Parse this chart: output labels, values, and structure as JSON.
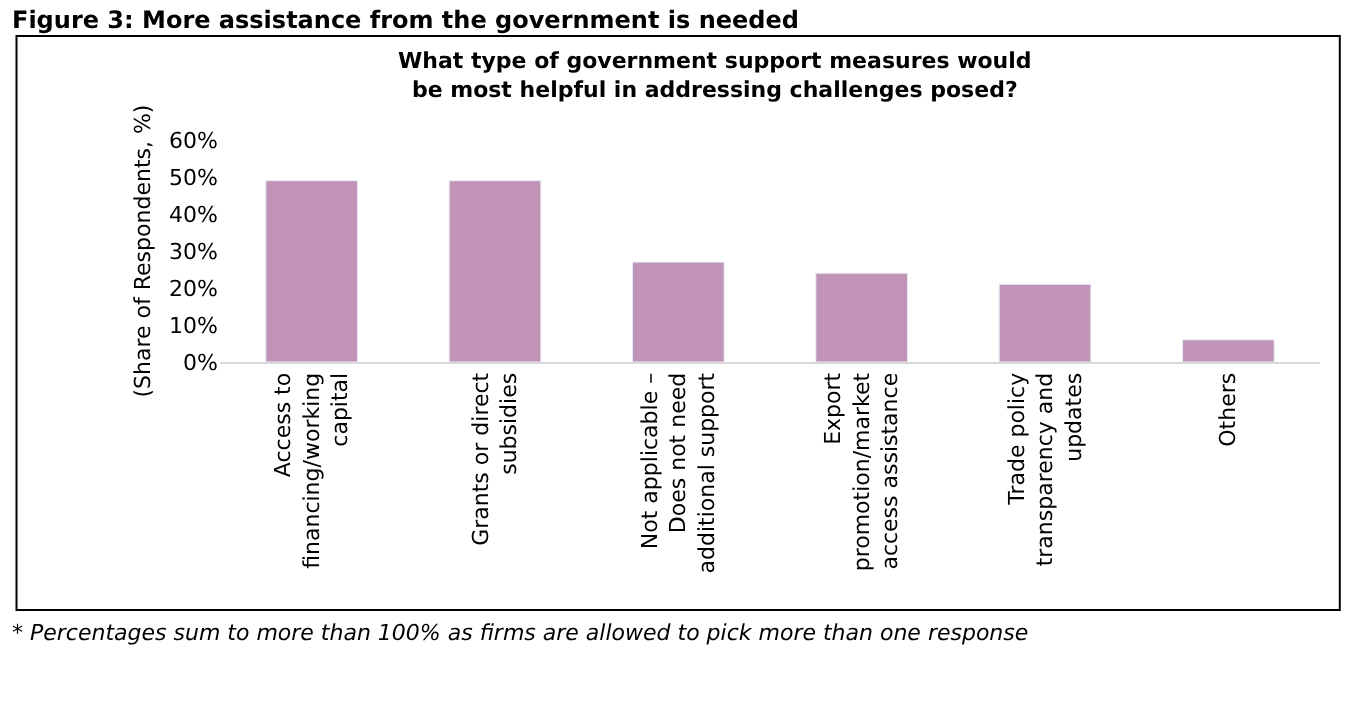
{
  "chart_data": {
    "type": "bar",
    "title": "Figure 3: More assistance from the government is needed",
    "subtitle": "What type of government support measures would\nbe most helpful in addressing challenges posed?",
    "ylabel": "(Share of Respondents, %)",
    "categories": [
      "Access to\nfinancing/working\ncapital",
      "Grants or direct\nsubsidies",
      "Not applicable –\nDoes not need\nadditional support",
      "Export\npromotion/market\naccess assistance",
      "Trade policy\ntransparency and\nupdates",
      "Others"
    ],
    "values": [
      49,
      49,
      27,
      24,
      21,
      6
    ],
    "color": "#c093b7",
    "ylim": [
      0,
      60
    ],
    "yticks": [
      {
        "value": 0,
        "label": "0%"
      },
      {
        "value": 10,
        "label": "10%"
      },
      {
        "value": 20,
        "label": "20%"
      },
      {
        "value": 30,
        "label": "30%"
      },
      {
        "value": 40,
        "label": "40%"
      },
      {
        "value": 50,
        "label": "50%"
      },
      {
        "value": 60,
        "label": "60%"
      }
    ],
    "legend": false,
    "annotations": [
      "* Percentages sum to more than 100% as firms are allowed to pick more than one response"
    ]
  }
}
